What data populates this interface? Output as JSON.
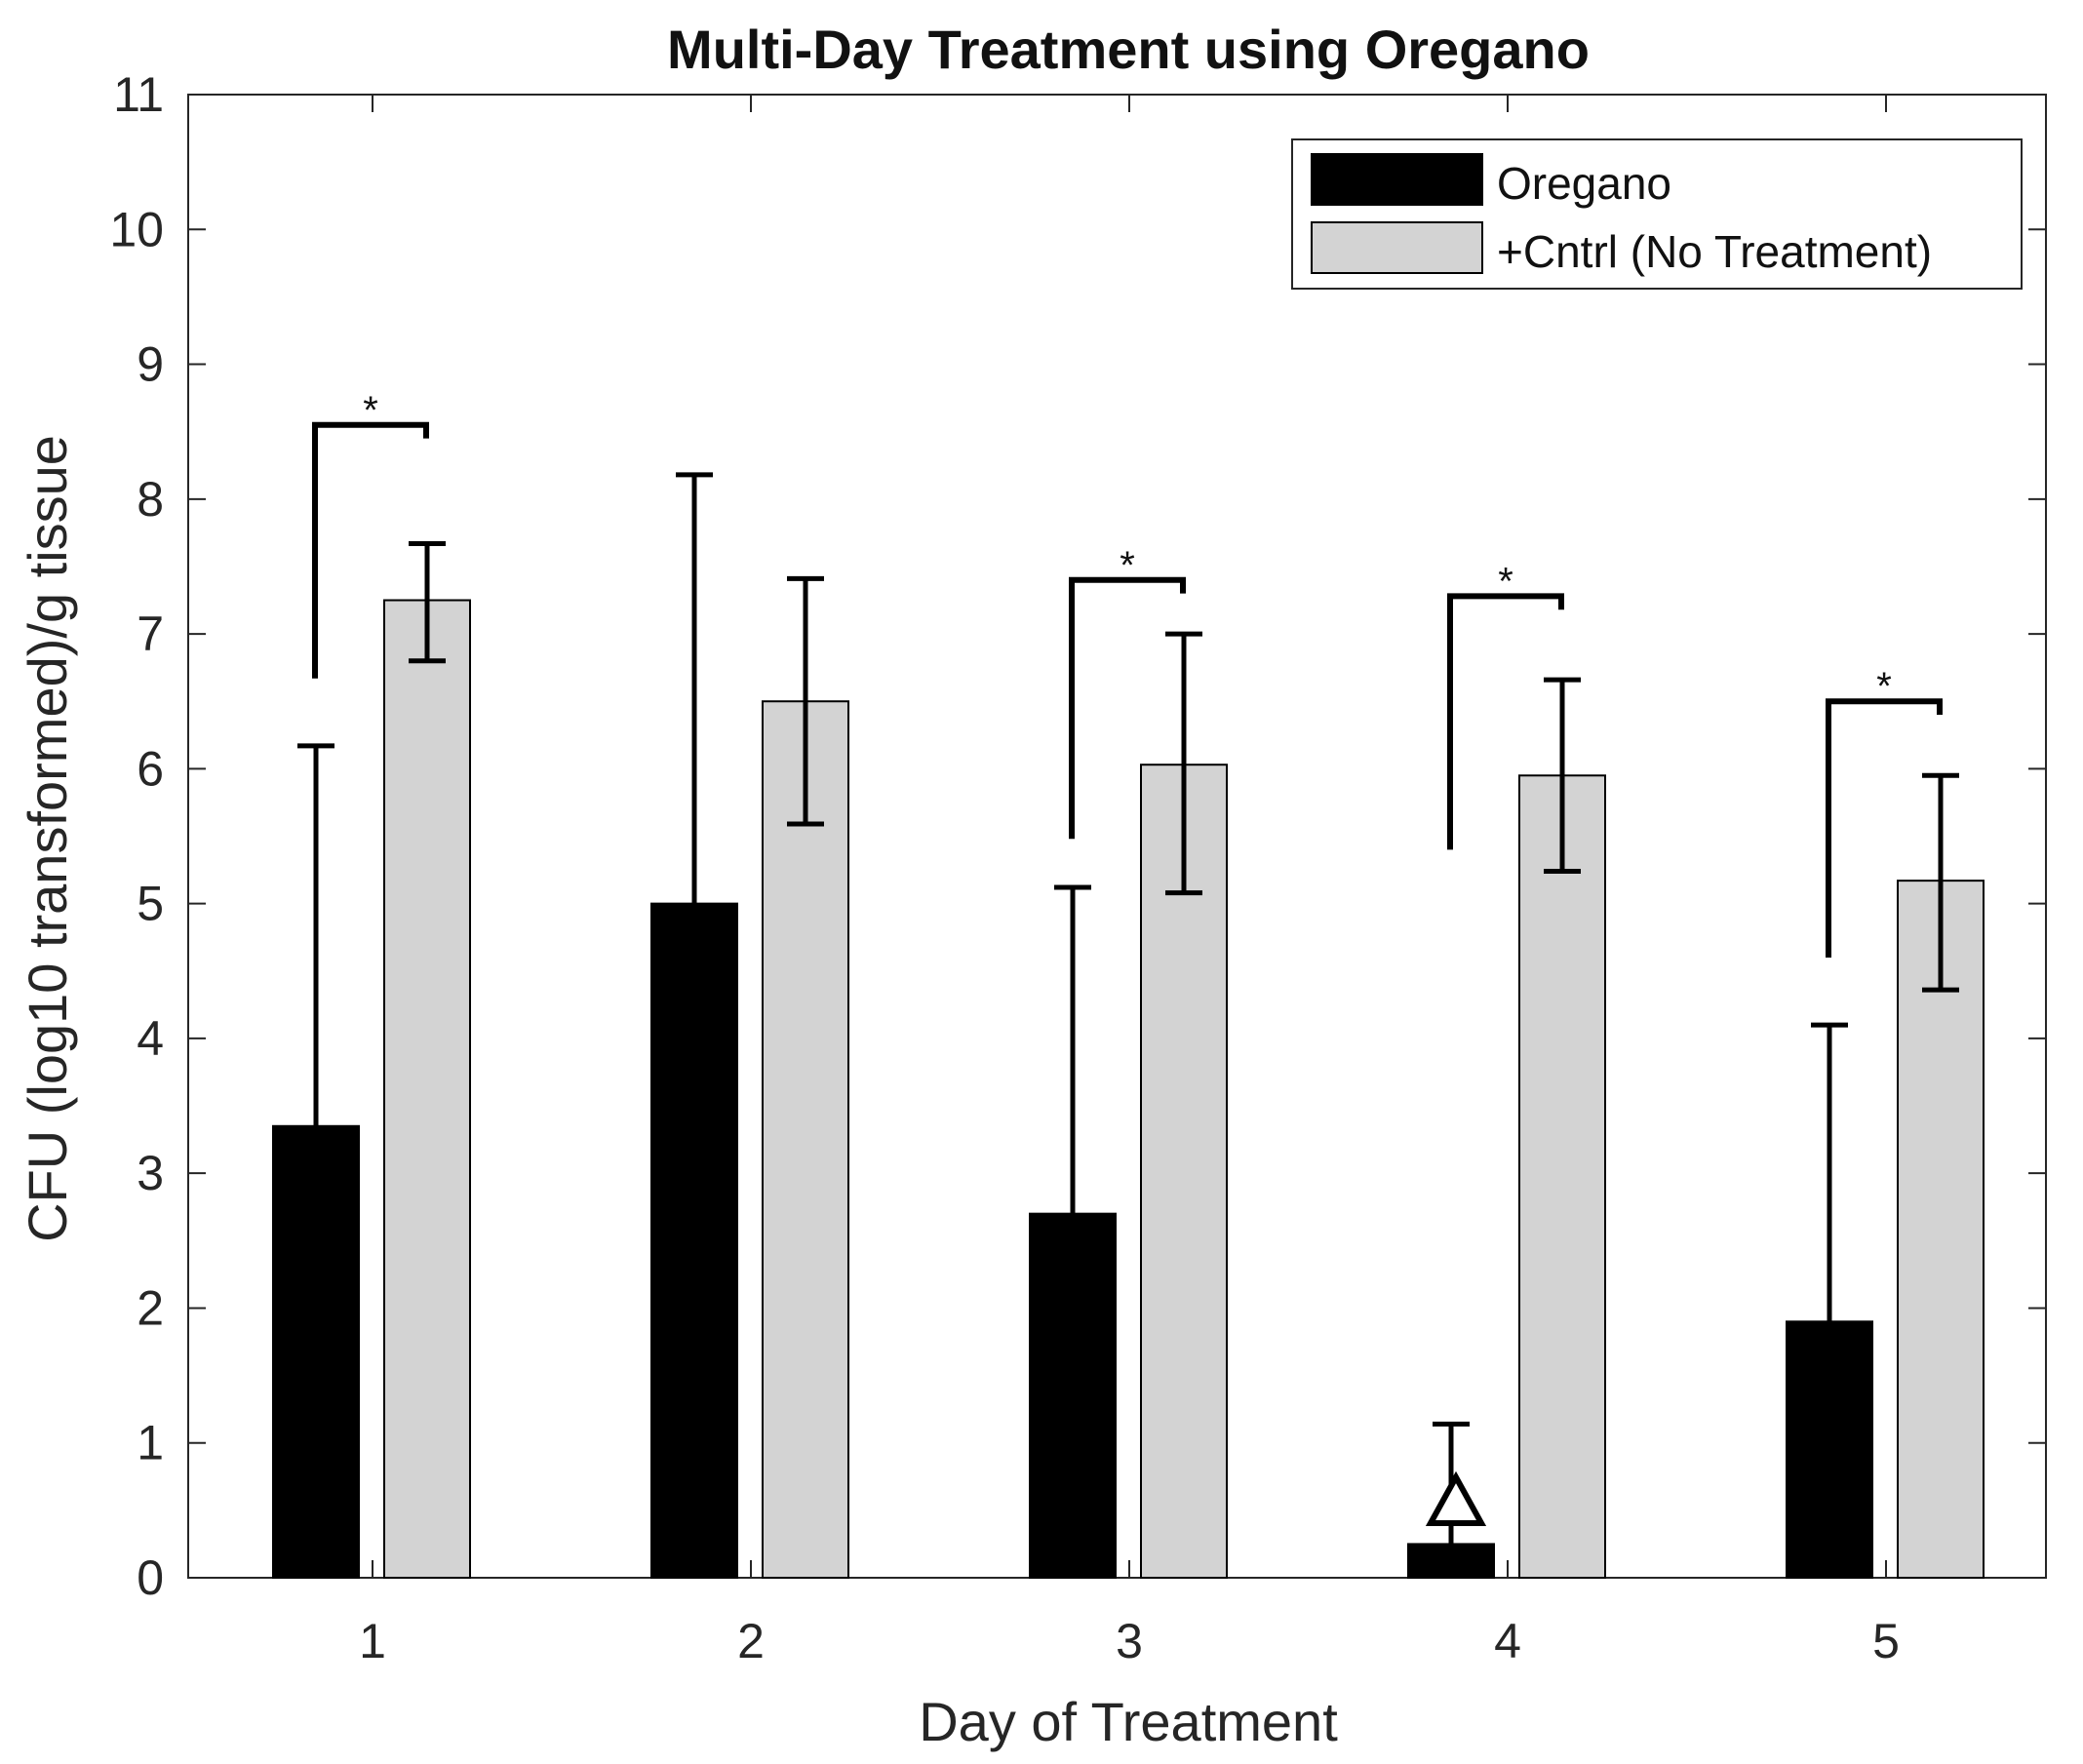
{
  "chart_data": {
    "type": "bar",
    "title": "Multi-Day Treatment using Oregano",
    "xlabel": "Day of Treatment",
    "ylabel": "CFU (log10 transformed)/g tissue",
    "categories": [
      "1",
      "2",
      "3",
      "4",
      "5"
    ],
    "ylim": [
      0,
      11
    ],
    "yticks": [
      "0",
      "1",
      "2",
      "3",
      "4",
      "5",
      "6",
      "7",
      "8",
      "9",
      "10",
      "11"
    ],
    "legend_position": "top-right",
    "series": [
      {
        "name": "Oregano",
        "color": "#000000",
        "values": [
          3.35,
          5.0,
          2.7,
          0.25,
          1.9
        ],
        "error_upper": [
          6.17,
          8.18,
          5.12,
          1.14,
          4.1
        ],
        "error_lower": [
          null,
          null,
          null,
          null,
          null
        ]
      },
      {
        "name": "+Cntrl (No Treatment)",
        "color": "#d3d3d3",
        "values": [
          7.25,
          6.5,
          6.03,
          5.95,
          5.17
        ],
        "error_upper": [
          7.67,
          7.41,
          7.0,
          6.66,
          5.95
        ],
        "error_lower": [
          6.8,
          5.59,
          5.08,
          5.24,
          4.36
        ]
      }
    ],
    "significance": [
      {
        "day": "1",
        "label": "*",
        "bracket_top": 8.55,
        "left_bottom": 6.67,
        "right_bottom": 8.45
      },
      {
        "day": "3",
        "label": "*",
        "bracket_top": 7.4,
        "left_bottom": 5.48,
        "right_bottom": 7.3
      },
      {
        "day": "4",
        "label": "*",
        "bracket_top": 7.28,
        "left_bottom": 5.4,
        "right_bottom": 7.18
      },
      {
        "day": "5",
        "label": "*",
        "bracket_top": 6.5,
        "left_bottom": 4.6,
        "right_bottom": 6.4
      }
    ],
    "marker": {
      "day": "4",
      "shape": "triangle",
      "value": 0.55
    }
  }
}
